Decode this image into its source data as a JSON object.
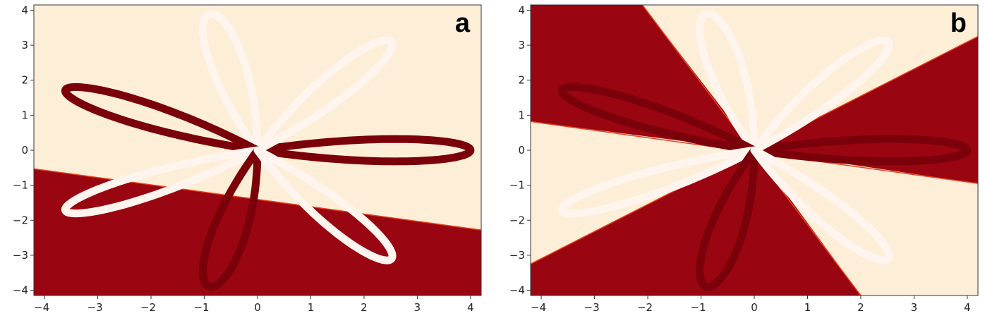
{
  "figure": {
    "colors": {
      "light_region": "#fdeed8",
      "dark_region": "#990510",
      "light_curve": "#fff5ee",
      "dark_curve": "#7a000a",
      "boundary": "#e8411f"
    },
    "grid": false
  },
  "chart_data": [
    {
      "type": "heatmap",
      "panel_label": "a",
      "description_hidden": true,
      "xlim": [
        -4.2,
        4.2
      ],
      "ylim": [
        -4.15,
        4.15
      ],
      "xticks": [
        -4,
        -3,
        -2,
        -1,
        0,
        1,
        2,
        3,
        4
      ],
      "yticks": [
        -4,
        -3,
        -2,
        -1,
        0,
        1,
        2,
        3,
        4
      ],
      "decision_boundary": {
        "x": [
          -4.2,
          4.2
        ],
        "y": [
          -0.53,
          -2.28
        ]
      },
      "petals": [
        {
          "class": "dark",
          "tip": [
            4.0,
            0.0
          ]
        },
        {
          "class": "light",
          "tip": [
            2.5,
            3.0
          ]
        },
        {
          "class": "light",
          "tip": [
            -1.0,
            3.8
          ]
        },
        {
          "class": "dark",
          "tip": [
            -3.5,
            1.7
          ]
        },
        {
          "class": "light",
          "tip": [
            -3.5,
            -1.7
          ]
        },
        {
          "class": "dark",
          "tip": [
            -1.0,
            -3.8
          ]
        },
        {
          "class": "light",
          "tip": [
            2.5,
            -3.0
          ]
        }
      ]
    },
    {
      "type": "heatmap",
      "panel_label": "b",
      "xlim": [
        -4.2,
        4.2
      ],
      "ylim": [
        -4.15,
        4.15
      ],
      "xticks": [
        -4,
        -3,
        -2,
        -1,
        0,
        1,
        2,
        3,
        4
      ],
      "yticks": [
        -4,
        -3,
        -2,
        -1,
        0,
        1,
        2,
        3,
        4
      ],
      "decision_boundaries": [
        {
          "x": [
            -4.2,
            4.2
          ],
          "y": [
            0.82,
            -0.95
          ]
        },
        {
          "x": [
            -2.1,
            2.0
          ],
          "y": [
            4.15,
            -4.15
          ]
        },
        {
          "x": [
            -4.2,
            4.2
          ],
          "y": [
            -3.25,
            3.25
          ]
        }
      ],
      "petals": [
        {
          "class": "dark",
          "tip": [
            4.0,
            0.0
          ]
        },
        {
          "class": "light",
          "tip": [
            2.5,
            3.0
          ]
        },
        {
          "class": "light",
          "tip": [
            -1.0,
            3.8
          ]
        },
        {
          "class": "dark",
          "tip": [
            -3.5,
            1.7
          ]
        },
        {
          "class": "light",
          "tip": [
            -3.5,
            -1.7
          ]
        },
        {
          "class": "dark",
          "tip": [
            -1.0,
            -3.8
          ]
        },
        {
          "class": "light",
          "tip": [
            2.5,
            -3.0
          ]
        }
      ]
    }
  ]
}
